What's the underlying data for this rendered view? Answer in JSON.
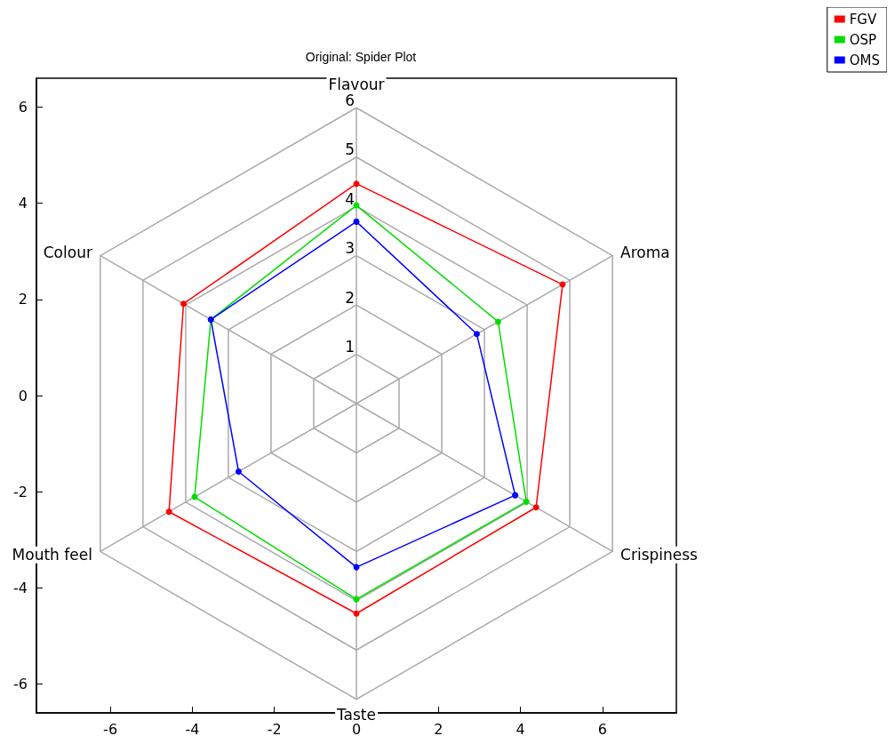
{
  "chart_data": [
    {
      "type": "scatter",
      "title": "Original: Spider Plot",
      "xlim": [
        -7.8,
        7.8
      ],
      "xticks": [
        -6,
        -4,
        -2,
        0,
        2,
        4,
        6
      ],
      "ylim": [
        -6.6,
        6.6
      ],
      "yticks": [
        -6,
        -4,
        -2,
        0,
        2,
        4,
        6
      ]
    },
    {
      "type": "radar",
      "categories": [
        "Flavour",
        "Aroma",
        "Crispiness",
        "Taste",
        "Mouth feel",
        "Colour"
      ],
      "series": [
        {
          "name": "FGV",
          "color": "#ff0000",
          "values": [
            4.46,
            4.83,
            4.21,
            4.26,
            4.39,
            4.05
          ]
        },
        {
          "name": "OSP",
          "color": "#00dd00",
          "values": [
            4.02,
            3.32,
            3.98,
            3.97,
            3.79,
            3.41
          ]
        },
        {
          "name": "OMS",
          "color": "#0000ff",
          "values": [
            3.69,
            2.82,
            3.72,
            3.32,
            2.76,
            3.41
          ]
        }
      ],
      "ylim": [
        0,
        6
      ],
      "yticks": [
        1,
        2,
        3,
        4,
        5,
        6
      ],
      "marker": "circle",
      "legend": "top right",
      "grid": true
    }
  ]
}
